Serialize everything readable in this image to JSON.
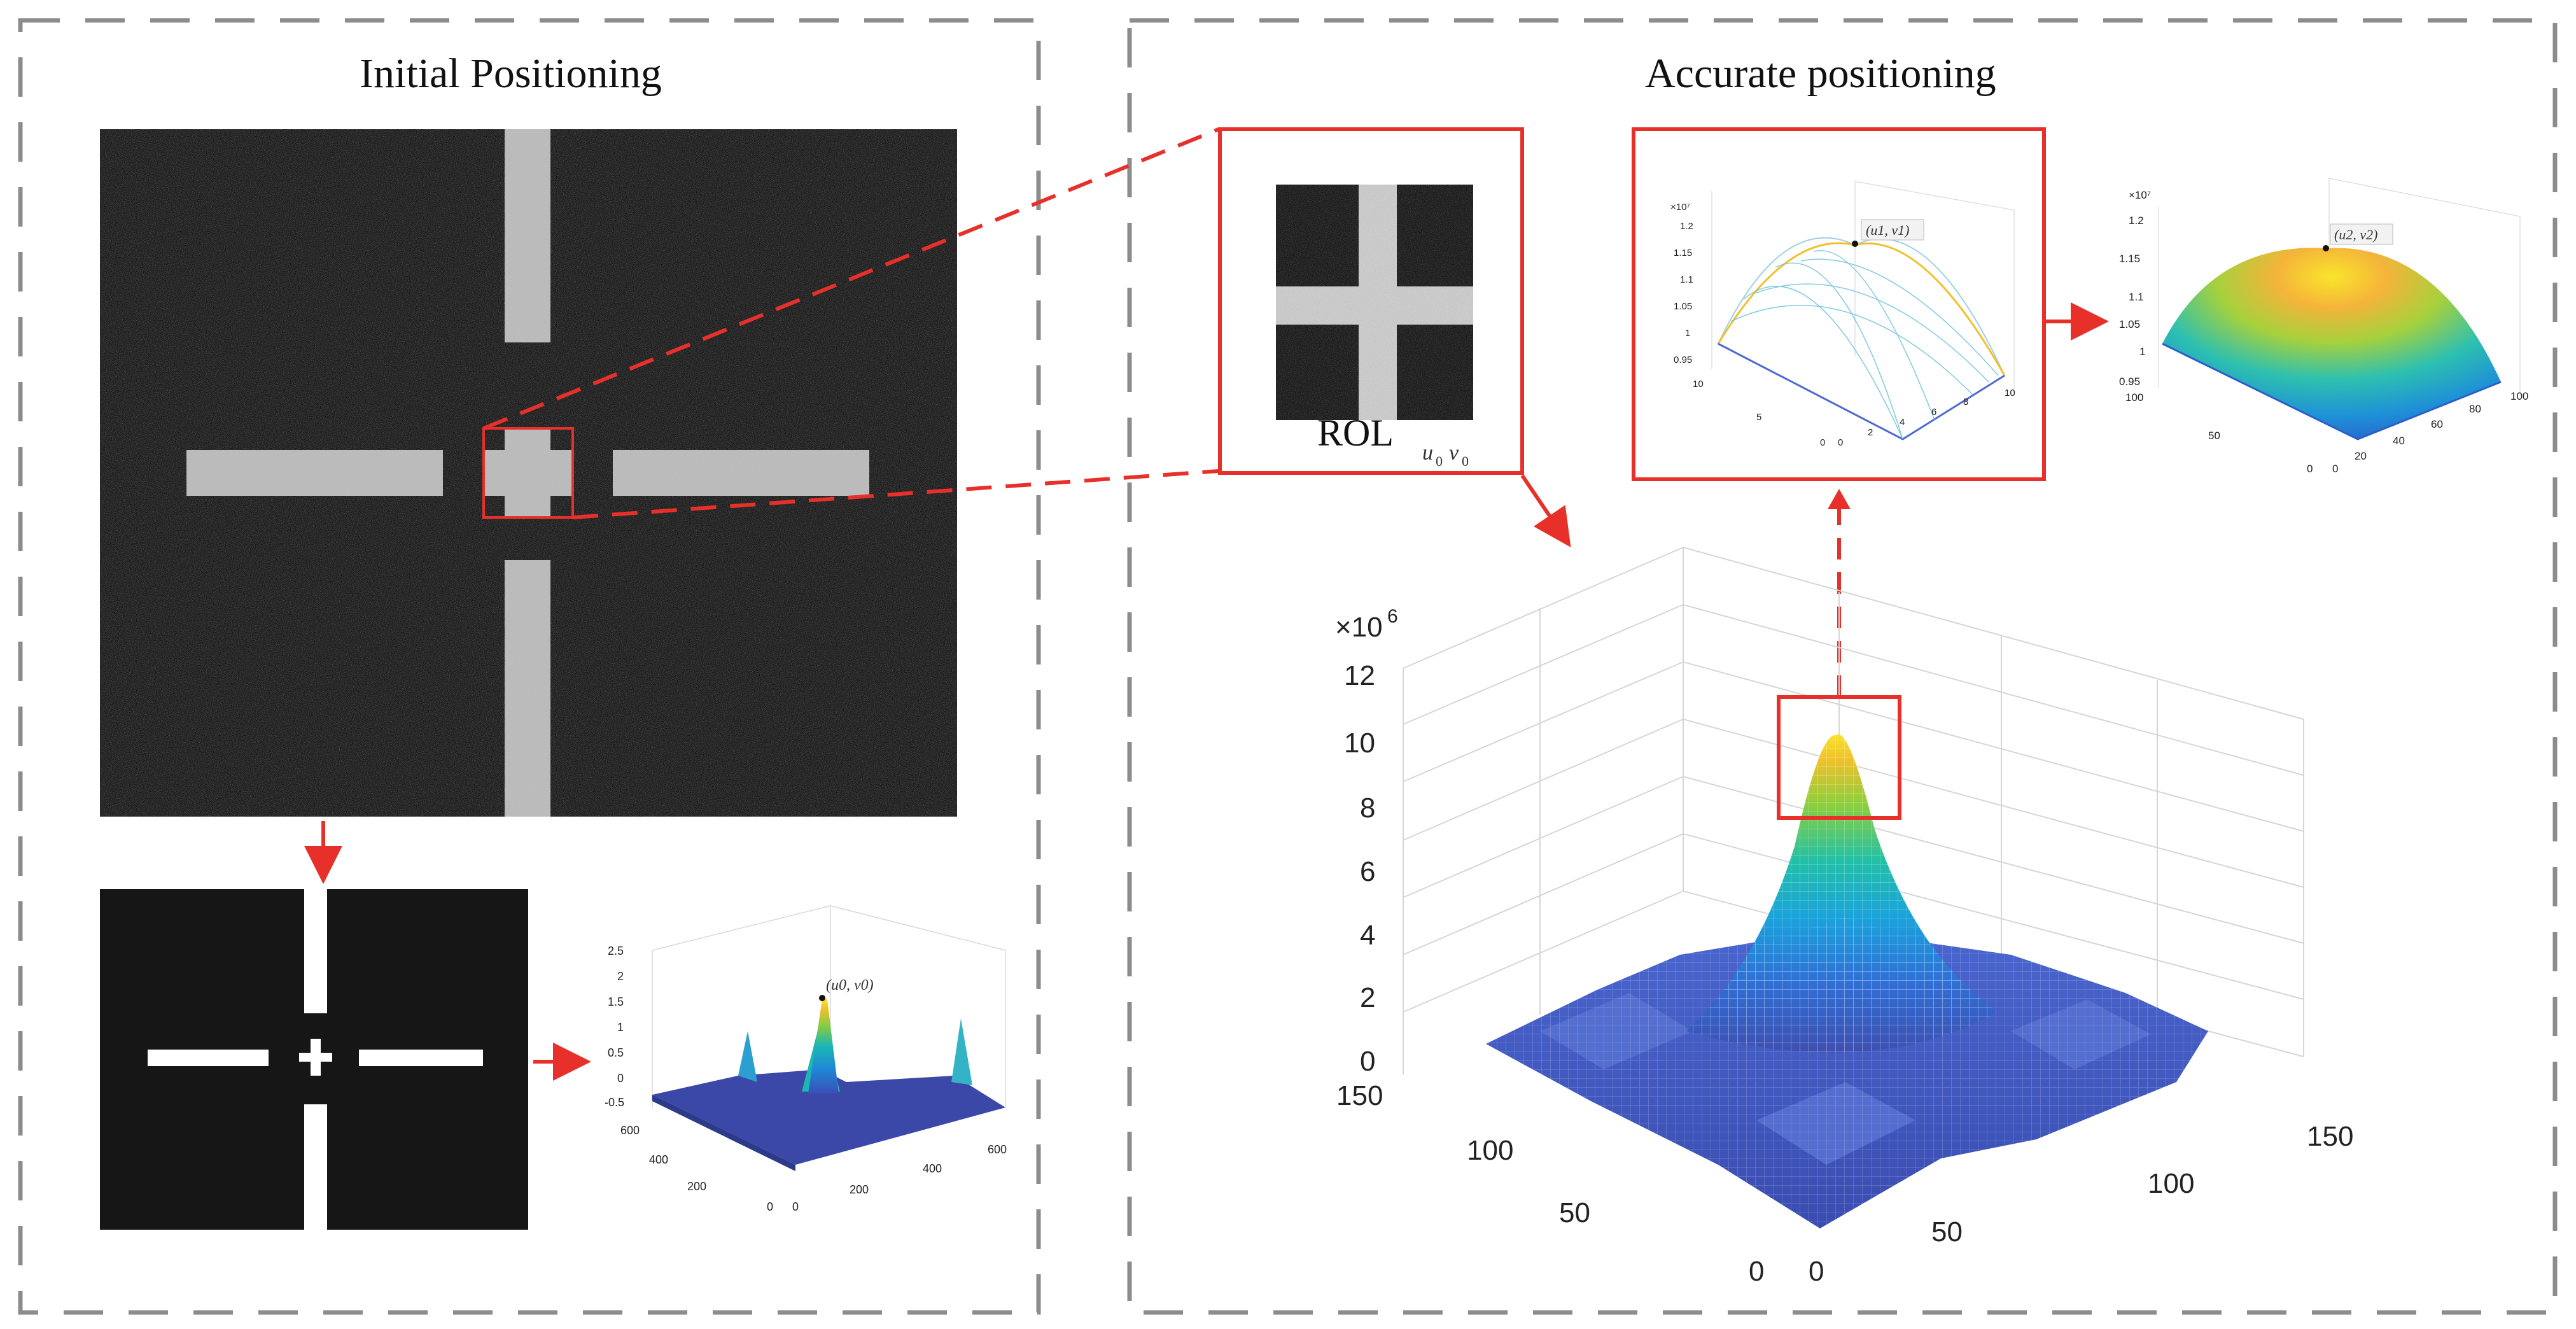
{
  "panels": {
    "initial": {
      "title": "Initial Positioning"
    },
    "accurate": {
      "title": "Accurate positioning"
    }
  },
  "roi_label": {
    "main": "ROL",
    "sub_u": "u",
    "sub_u_idx": "0",
    "sub_v": "v",
    "sub_v_idx": "0"
  },
  "plots": {
    "small": {
      "annotation": "(u0, v0)",
      "z_ticks": [
        "2.5",
        "2",
        "1.5",
        "1",
        "0.5",
        "0",
        "-0.5"
      ],
      "y_ticks": [
        "600",
        "400",
        "200",
        "0"
      ],
      "x_ticks": [
        "0",
        "200",
        "400",
        "600"
      ]
    },
    "mesh": {
      "annotation": "(u1, v1)",
      "exponent": "×10⁷",
      "z_ticks": [
        "1.2",
        "1.15",
        "1.1",
        "1.05",
        "1",
        "0.95"
      ],
      "y_ticks": [
        "10",
        "5",
        "0"
      ],
      "x_ticks": [
        "0",
        "2",
        "4",
        "6",
        "8",
        "10"
      ]
    },
    "surface": {
      "annotation": "(u2, v2)",
      "exponent": "×10⁷",
      "z_ticks": [
        "1.2",
        "1.15",
        "1.1",
        "1.05",
        "1",
        "0.95"
      ],
      "y_ticks": [
        "100",
        "50",
        "0"
      ],
      "x_ticks": [
        "0",
        "20",
        "40",
        "60",
        "80",
        "100"
      ]
    },
    "large": {
      "exponent_base": "×10",
      "exponent_power": "6",
      "z_ticks": [
        "12",
        "10",
        "8",
        "6",
        "4",
        "2",
        "0"
      ],
      "y_ticks": [
        "150",
        "100",
        "50",
        "0"
      ],
      "x_ticks": [
        "0",
        "50",
        "100",
        "150"
      ]
    }
  },
  "colors": {
    "accent_red": "#e8302a",
    "dash_gray": "#8c8c8c",
    "dark_bg": "#161616"
  },
  "icons": [
    "red-arrow",
    "dashed-connector",
    "zoom-box"
  ]
}
